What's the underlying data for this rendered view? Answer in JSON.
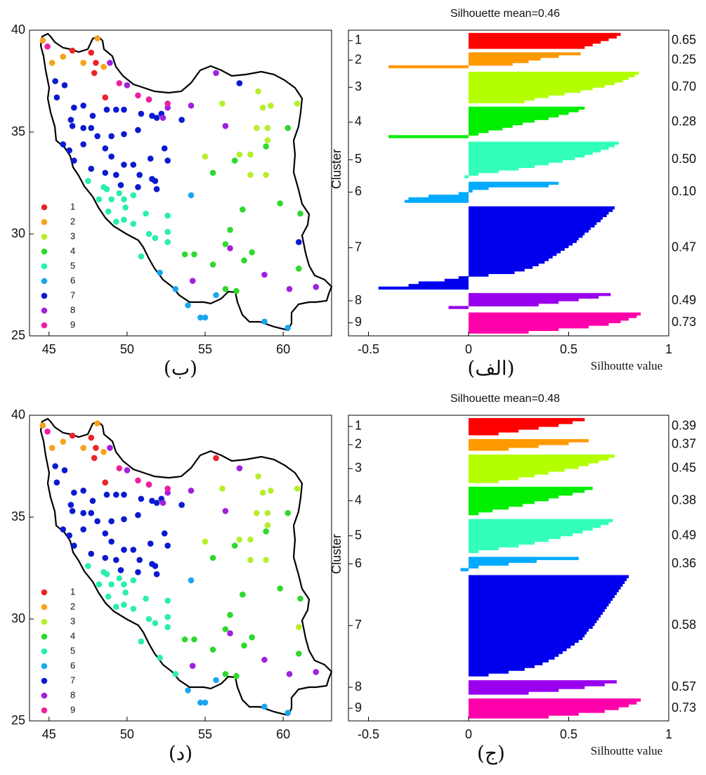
{
  "chart_data": [
    {
      "type": "scatter",
      "caption": "(ب)",
      "xlim": [
        43.75,
        63.1
      ],
      "ylim": [
        25,
        40
      ],
      "xticks": [
        45,
        50,
        55,
        60
      ],
      "yticks": [
        25,
        30,
        35,
        40
      ],
      "legend": "lower left",
      "series": [
        {
          "name": "1",
          "color": "#e8262a",
          "x": [
            46.5,
            47.7,
            48.0,
            47.9,
            48.6
          ],
          "y": [
            39.0,
            38.9,
            38.4,
            37.9,
            36.7
          ]
        },
        {
          "name": "2",
          "color": "#f7a21b",
          "x": [
            44.6,
            45.2,
            45.9,
            47.2,
            48.5,
            48.1
          ],
          "y": [
            39.5,
            38.4,
            38.7,
            38.4,
            38.2,
            39.6
          ]
        },
        {
          "name": "3",
          "color": "#b6ee2c",
          "x": [
            56.1,
            58.4,
            58.7,
            59.2,
            58.3,
            59.0,
            59.0,
            55.0,
            57.9,
            57.2,
            57.9,
            58.9,
            60.9
          ],
          "y": [
            36.4,
            37.0,
            36.2,
            36.3,
            35.2,
            35.2,
            34.6,
            33.8,
            33.9,
            33.9,
            32.9,
            32.9,
            36.4
          ]
        },
        {
          "name": "4",
          "color": "#2ed82e",
          "x": [
            60.3,
            56.9,
            55.5,
            58.9,
            61.1,
            59.8,
            57.4,
            56.6,
            56.3,
            53.7,
            54.3,
            58.0,
            57.5,
            61.0,
            55.5,
            57.0,
            56.3
          ],
          "y": [
            35.2,
            33.6,
            33.0,
            34.3,
            31.0,
            31.5,
            31.2,
            30.2,
            29.5,
            29.0,
            29.0,
            29.1,
            28.7,
            28.3,
            28.5,
            27.2,
            27.3
          ]
        },
        {
          "name": "5",
          "color": "#2aeeb0",
          "x": [
            48.5,
            48.7,
            49.5,
            49.0,
            49.8,
            50.4,
            48.2,
            48.8,
            49.9,
            49.3,
            49.8,
            50.4,
            51.2,
            51.4,
            52.6,
            52.6,
            52.6,
            50.9,
            51.8,
            47.5
          ],
          "y": [
            32.3,
            32.2,
            32.0,
            31.7,
            31.7,
            31.9,
            31.7,
            31.1,
            31.3,
            30.6,
            30.7,
            30.5,
            31.0,
            30.0,
            30.1,
            29.6,
            30.9,
            28.9,
            29.8,
            32.6
          ]
        },
        {
          "name": "6",
          "color": "#1aa6ee",
          "x": [
            54.1,
            53.1,
            53.9,
            54.7,
            55.0,
            55.7,
            58.8,
            60.3,
            52.1
          ],
          "y": [
            31.9,
            27.3,
            26.5,
            25.9,
            25.9,
            27.0,
            25.7,
            25.4,
            28.1
          ]
        },
        {
          "name": "7",
          "color": "#0a1ad0",
          "x": [
            45.4,
            46.0,
            45.5,
            46.6,
            47.2,
            47.8,
            48.7,
            49.3,
            49.8,
            50.9,
            51.6,
            51.9,
            52.2,
            53.5,
            46.4,
            46.5,
            47.2,
            47.7,
            48.1,
            49.0,
            49.8,
            50.7,
            45.9,
            46.3,
            47.2,
            48.6,
            49.0,
            49.8,
            50.4,
            51.5,
            52.4,
            46.6,
            47.7,
            48.6,
            49.3,
            50.8,
            51.6,
            51.8,
            52.6,
            49.6,
            50.7,
            51.9,
            57.2,
            61.0
          ],
          "y": [
            37.5,
            37.3,
            36.7,
            36.2,
            36.3,
            35.8,
            36.1,
            36.1,
            36.1,
            35.9,
            35.8,
            35.7,
            35.9,
            35.6,
            35.6,
            35.3,
            35.2,
            35.2,
            34.8,
            34.8,
            34.9,
            35.1,
            34.4,
            34.1,
            34.4,
            34.2,
            33.8,
            33.4,
            33.4,
            33.7,
            34.2,
            33.6,
            33.2,
            33.0,
            32.9,
            32.9,
            32.7,
            32.6,
            33.6,
            32.4,
            32.3,
            32.2,
            37.4,
            29.6
          ]
        },
        {
          "name": "8",
          "color": "#a020de",
          "x": [
            48.9,
            50.0,
            52.6,
            52.3,
            54.1,
            55.7,
            56.3,
            56.6,
            54.2,
            58.8,
            60.4,
            62.1,
            51.4
          ],
          "y": [
            38.4,
            37.3,
            36.2,
            35.7,
            36.3,
            37.9,
            35.3,
            29.3,
            27.7,
            28.0,
            27.3,
            27.4,
            36.6
          ]
        },
        {
          "name": "9",
          "color": "#ee20a0",
          "x": [
            44.9,
            49.5,
            50.7,
            51.4,
            52.6
          ],
          "y": [
            39.2,
            37.4,
            36.8,
            36.6,
            36.4
          ]
        }
      ]
    },
    {
      "type": "silhouette",
      "title": "Silhouette mean=0.46",
      "caption": "(الف)",
      "xlabel": "Silhoutte value",
      "ylabel": "Cluster",
      "xlim": [
        -0.6,
        1
      ],
      "xticks": [
        -0.5,
        0,
        0.5,
        1
      ],
      "series": [
        {
          "name": "1",
          "color": "#ff0000",
          "value_label": "0.65",
          "values": [
            0.76,
            0.74,
            0.7,
            0.66,
            0.62,
            0.58
          ]
        },
        {
          "name": "2",
          "color": "#ff9900",
          "value_label": "0.25",
          "values": [
            0.56,
            0.45,
            0.36,
            0.3,
            0.22,
            -0.4
          ]
        },
        {
          "name": "3",
          "color": "#b3ff00",
          "value_label": "0.70",
          "values": [
            0.85,
            0.83,
            0.8,
            0.77,
            0.73,
            0.68,
            0.62,
            0.56,
            0.48,
            0.4,
            0.33,
            0.28
          ]
        },
        {
          "name": "4",
          "color": "#00ee00",
          "value_label": "0.28",
          "values": [
            0.58,
            0.55,
            0.5,
            0.45,
            0.4,
            0.33,
            0.27,
            0.22,
            0.17,
            0.1,
            0.05,
            -0.4
          ]
        },
        {
          "name": "5",
          "color": "#33ffbb",
          "value_label": "0.50",
          "values": [
            0.75,
            0.73,
            0.7,
            0.66,
            0.62,
            0.58,
            0.53,
            0.47,
            0.4,
            0.33,
            0.25,
            0.15,
            0.05,
            -0.02
          ]
        },
        {
          "name": "6",
          "color": "#00aaff",
          "value_label": "0.10",
          "values": [
            0.45,
            0.4,
            0.1,
            0.02,
            -0.05,
            -0.2,
            -0.3,
            -0.32
          ]
        },
        {
          "name": "7",
          "color": "#0000ee",
          "value_label": "0.47",
          "values": [
            0.73,
            0.72,
            0.7,
            0.69,
            0.67,
            0.66,
            0.64,
            0.63,
            0.61,
            0.6,
            0.58,
            0.57,
            0.55,
            0.54,
            0.52,
            0.5,
            0.48,
            0.46,
            0.44,
            0.42,
            0.4,
            0.38,
            0.35,
            0.32,
            0.28,
            0.23,
            0.1,
            -0.05,
            -0.12,
            -0.25,
            -0.3,
            -0.45
          ]
        },
        {
          "name": "8",
          "color": "#9900ee",
          "value_label": "0.49",
          "values": [
            0.71,
            0.65,
            0.55,
            0.45,
            0.35,
            -0.1
          ]
        },
        {
          "name": "9",
          "color": "#ff00aa",
          "value_label": "0.73",
          "values": [
            0.86,
            0.84,
            0.8,
            0.76,
            0.7,
            0.6,
            0.45,
            0.3
          ]
        }
      ]
    },
    {
      "type": "scatter",
      "caption": "(د)",
      "xlim": [
        43.75,
        63.1
      ],
      "ylim": [
        25,
        40
      ],
      "xticks": [
        45,
        50,
        55,
        60
      ],
      "yticks": [
        25,
        30,
        35,
        40
      ],
      "legend": "lower left",
      "series": [
        {
          "name": "1",
          "color": "#e8262a",
          "x": [
            46.5,
            47.7,
            48.0,
            47.9,
            48.6,
            55.7
          ],
          "y": [
            39.0,
            38.9,
            38.4,
            37.9,
            36.7,
            37.9
          ]
        },
        {
          "name": "2",
          "color": "#f7a21b",
          "x": [
            44.6,
            45.2,
            45.9,
            47.2,
            48.5,
            48.1
          ],
          "y": [
            39.5,
            38.4,
            38.7,
            38.4,
            38.2,
            39.6
          ]
        },
        {
          "name": "3",
          "color": "#b6ee2c",
          "x": [
            56.1,
            58.4,
            58.7,
            59.2,
            58.3,
            59.0,
            59.0,
            55.0,
            57.9,
            57.2,
            57.9,
            58.9,
            60.9,
            61.0
          ],
          "y": [
            36.4,
            37.0,
            36.2,
            36.3,
            35.2,
            35.2,
            34.6,
            33.8,
            33.9,
            33.9,
            32.9,
            32.9,
            36.4,
            29.6
          ]
        },
        {
          "name": "4",
          "color": "#2ed82e",
          "x": [
            60.3,
            56.9,
            55.5,
            58.9,
            61.1,
            59.8,
            57.4,
            56.6,
            56.3,
            53.7,
            54.3,
            58.0,
            57.5,
            61.0,
            55.5,
            57.0,
            56.3
          ],
          "y": [
            35.2,
            33.6,
            33.0,
            34.3,
            31.0,
            31.5,
            31.2,
            30.2,
            29.5,
            29.0,
            29.0,
            29.1,
            28.7,
            28.3,
            28.5,
            27.2,
            27.3
          ]
        },
        {
          "name": "5",
          "color": "#2aeeb0",
          "x": [
            48.5,
            48.7,
            49.5,
            49.0,
            49.8,
            50.4,
            48.2,
            48.8,
            49.9,
            49.3,
            49.8,
            50.4,
            51.2,
            51.4,
            52.6,
            52.6,
            52.6,
            50.9,
            51.8,
            47.5,
            53.1,
            52.1
          ],
          "y": [
            32.3,
            32.2,
            32.0,
            31.7,
            31.7,
            31.9,
            31.7,
            31.1,
            31.3,
            30.6,
            30.7,
            30.5,
            31.0,
            30.0,
            30.1,
            29.6,
            30.9,
            28.9,
            29.8,
            32.6,
            27.3,
            28.1
          ]
        },
        {
          "name": "6",
          "color": "#1aa6ee",
          "x": [
            54.1,
            53.9,
            54.7,
            55.0,
            55.7,
            58.8,
            60.3
          ],
          "y": [
            31.9,
            26.5,
            25.9,
            25.9,
            27.0,
            25.7,
            25.4
          ]
        },
        {
          "name": "7",
          "color": "#0a1ad0",
          "x": [
            45.4,
            46.0,
            45.5,
            46.6,
            47.2,
            47.8,
            48.7,
            49.3,
            49.8,
            50.9,
            51.6,
            51.9,
            52.2,
            53.5,
            46.4,
            46.5,
            47.2,
            47.7,
            48.1,
            49.0,
            49.8,
            50.7,
            45.9,
            46.3,
            47.2,
            48.6,
            49.0,
            49.8,
            50.4,
            51.5,
            52.4,
            46.6,
            47.7,
            48.6,
            49.3,
            50.8,
            51.6,
            51.8,
            52.6,
            49.6,
            50.7,
            51.9
          ],
          "y": [
            37.5,
            37.3,
            36.7,
            36.2,
            36.3,
            35.8,
            36.1,
            36.1,
            36.1,
            35.9,
            35.8,
            35.7,
            35.9,
            35.6,
            35.6,
            35.3,
            35.2,
            35.2,
            34.8,
            34.8,
            34.9,
            35.1,
            34.4,
            34.1,
            34.4,
            34.2,
            33.8,
            33.4,
            33.4,
            33.7,
            34.2,
            33.6,
            33.2,
            33.0,
            32.9,
            32.9,
            32.7,
            32.6,
            33.6,
            32.4,
            32.3,
            32.2
          ]
        },
        {
          "name": "8",
          "color": "#a020de",
          "x": [
            48.9,
            50.0,
            52.6,
            52.3,
            54.1,
            56.3,
            56.6,
            54.2,
            58.8,
            60.4,
            62.1,
            51.4,
            57.2
          ],
          "y": [
            38.4,
            37.3,
            36.2,
            35.7,
            36.3,
            35.3,
            29.3,
            27.7,
            28.0,
            27.3,
            27.4,
            36.6,
            37.4
          ]
        },
        {
          "name": "9",
          "color": "#ee20a0",
          "x": [
            44.9,
            49.5,
            50.7,
            51.4,
            52.6
          ],
          "y": [
            39.2,
            37.4,
            36.8,
            36.6,
            36.4
          ]
        }
      ]
    },
    {
      "type": "silhouette",
      "title": "Silhouette mean=0.48",
      "caption": "(ج)",
      "xlabel": "Silhoutte value",
      "ylabel": "Cluster",
      "xlim": [
        -0.6,
        1
      ],
      "xticks": [
        -0.5,
        0,
        0.5,
        1
      ],
      "series": [
        {
          "name": "1",
          "color": "#ff0000",
          "value_label": "0.39",
          "values": [
            0.58,
            0.52,
            0.45,
            0.35,
            0.25,
            0.15
          ]
        },
        {
          "name": "2",
          "color": "#ff9900",
          "value_label": "0.37",
          "values": [
            0.6,
            0.5,
            0.35,
            0.2
          ]
        },
        {
          "name": "3",
          "color": "#b3ff00",
          "value_label": "0.45",
          "values": [
            0.73,
            0.7,
            0.65,
            0.6,
            0.55,
            0.48,
            0.4,
            0.33,
            0.25,
            0.15
          ]
        },
        {
          "name": "4",
          "color": "#00ee00",
          "value_label": "0.38",
          "values": [
            0.62,
            0.58,
            0.52,
            0.45,
            0.4,
            0.33,
            0.27,
            0.2,
            0.12,
            0.05
          ]
        },
        {
          "name": "5",
          "color": "#33ffbb",
          "value_label": "0.49",
          "values": [
            0.72,
            0.7,
            0.66,
            0.62,
            0.57,
            0.52,
            0.46,
            0.4,
            0.33,
            0.25,
            0.15,
            0.05
          ]
        },
        {
          "name": "6",
          "color": "#00aaff",
          "value_label": "0.36",
          "values": [
            0.55,
            0.34,
            0.2,
            0.05,
            -0.04
          ]
        },
        {
          "name": "7",
          "color": "#0000ee",
          "value_label": "0.58",
          "values": [
            0.8,
            0.79,
            0.78,
            0.77,
            0.76,
            0.75,
            0.74,
            0.73,
            0.72,
            0.71,
            0.7,
            0.69,
            0.68,
            0.67,
            0.66,
            0.65,
            0.64,
            0.63,
            0.62,
            0.6,
            0.59,
            0.58,
            0.57,
            0.55,
            0.53,
            0.51,
            0.49,
            0.47,
            0.45,
            0.43,
            0.4,
            0.37,
            0.33,
            0.28,
            0.2,
            0.1
          ]
        },
        {
          "name": "8",
          "color": "#9900ee",
          "value_label": "0.57",
          "values": [
            0.74,
            0.68,
            0.58,
            0.45,
            0.3
          ]
        },
        {
          "name": "9",
          "color": "#ff00aa",
          "value_label": "0.73",
          "values": [
            0.86,
            0.84,
            0.8,
            0.75,
            0.68,
            0.55,
            0.4
          ]
        }
      ]
    }
  ]
}
